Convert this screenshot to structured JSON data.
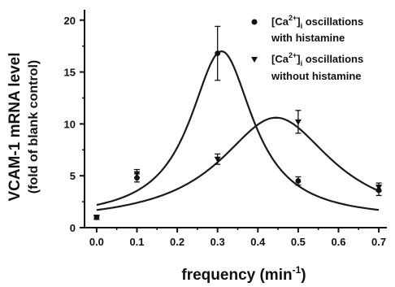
{
  "chart_data": {
    "type": "line",
    "xlabel_text": "frequency (min",
    "xlabel_sup": "-1",
    "xlabel_close": ")",
    "ylabel_line1": "VCAM-1 mRNA level",
    "ylabel_line2": "(fold of blank control)",
    "xlim": [
      -0.03,
      0.72
    ],
    "ylim": [
      0,
      21
    ],
    "xticks": [
      0.0,
      0.1,
      0.2,
      0.3,
      0.4,
      0.5,
      0.6,
      0.7
    ],
    "xtick_labels": [
      "0.0",
      "0.1",
      "0.2",
      "0.3",
      "0.4",
      "0.5",
      "0.6",
      "0.7"
    ],
    "yticks": [
      0,
      5,
      10,
      15,
      20
    ],
    "ytick_labels": [
      "0",
      "5",
      "10",
      "15",
      "20"
    ],
    "legend_position": "top-right",
    "series": [
      {
        "name_pre": "[Ca",
        "name_sup": "2+",
        "name_mid": "]",
        "name_sub": "i",
        "name_post": " oscillations",
        "name_line2": "with histamine",
        "marker": "circle",
        "points": [
          {
            "x": 0.0,
            "y": 1.0,
            "err": 0.2
          },
          {
            "x": 0.1,
            "y": 4.8,
            "err": 0.4
          },
          {
            "x": 0.3,
            "y": 16.8,
            "err": 2.6
          },
          {
            "x": 0.5,
            "y": 4.5,
            "err": 0.4
          },
          {
            "x": 0.7,
            "y": 3.6,
            "err": 0.5
          }
        ],
        "fit": {
          "baseline": 0.8,
          "amplitude": 16.2,
          "center": 0.31,
          "width": 0.095
        }
      },
      {
        "name_pre": "[Ca",
        "name_sup": "2+",
        "name_mid": "]",
        "name_sub": "i",
        "name_post": " oscillations",
        "name_line2": "without histamine",
        "marker": "triangle-down",
        "points": [
          {
            "x": 0.0,
            "y": 1.0,
            "err": 0.2
          },
          {
            "x": 0.1,
            "y": 5.2,
            "err": 0.4
          },
          {
            "x": 0.3,
            "y": 6.6,
            "err": 0.5
          },
          {
            "x": 0.5,
            "y": 10.2,
            "err": 1.1
          },
          {
            "x": 0.7,
            "y": 3.9,
            "err": 0.4
          }
        ],
        "fit": {
          "baseline": 0.4,
          "amplitude": 10.2,
          "center": 0.445,
          "width": 0.17
        }
      }
    ]
  }
}
